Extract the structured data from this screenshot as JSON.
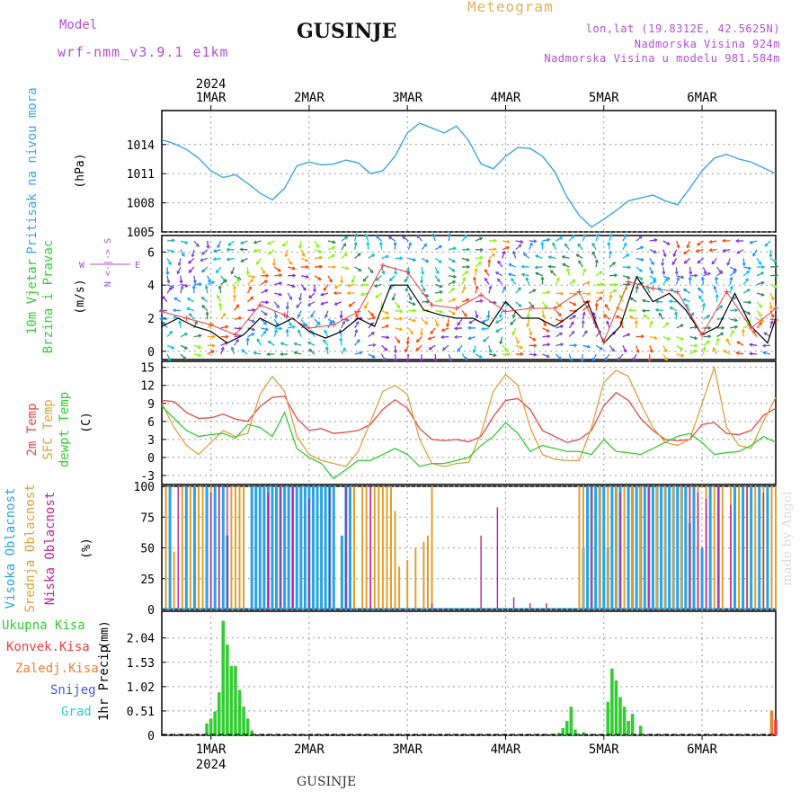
{
  "header": {
    "model_label": "Model",
    "model_name": "wrf-nmm_v3.9.1 e1km",
    "station": "GUSINJE",
    "product": "Meteogram",
    "lonlat": "lon,lat (19.8312E, 42.5625N)",
    "altitude": "Nadmorska Visina 924m",
    "altitude_model": "Nadmorska Visina u modelu 981.584m"
  },
  "footer": {
    "station": "GUSINJE",
    "watermark": "made by Angel"
  },
  "time_axis": {
    "year": "2024",
    "days": [
      "1MAR",
      "2MAR",
      "3MAR",
      "4MAR",
      "5MAR",
      "6MAR"
    ],
    "start_hour": -12,
    "end_hour": 138
  },
  "colors": {
    "pressure": "#3aa7e3",
    "temp2m": "#e04848",
    "sfc": "#e0a040",
    "dewpt": "#33cc33",
    "high_cloud": "#2aa2e6",
    "mid_cloud": "#e0a030",
    "low_cloud": "#c0209a",
    "rain_total": "#33cc33",
    "rain_conv": "#e84040",
    "rain_frozen": "#f08030",
    "snow": "#5050e0",
    "grad": "#30c8c0"
  },
  "chart_data": [
    {
      "type": "line",
      "panel": "pressure",
      "ylabel": "Pritisak na nivou mora",
      "unit": "(hPa)",
      "yticks": [
        1005,
        1008,
        1011,
        1014
      ],
      "ylim": [
        1005,
        1017.5
      ],
      "series": [
        {
          "x": [
            -12,
            -9,
            -6,
            -3,
            0,
            3,
            6,
            9,
            12,
            15,
            18,
            21,
            24,
            27,
            30,
            33,
            36,
            39,
            42,
            45,
            48,
            51,
            54,
            57,
            60,
            63,
            66,
            69,
            72,
            75,
            78,
            81,
            84,
            87,
            90,
            93,
            96,
            99,
            102,
            105,
            108,
            111,
            114,
            117,
            120,
            123,
            126,
            129,
            132,
            135,
            138
          ],
          "values": [
            1014.5,
            1014.1,
            1013.5,
            1012.6,
            1011.3,
            1010.6,
            1010.9,
            1010.0,
            1009.0,
            1008.3,
            1009.5,
            1011.8,
            1012.2,
            1011.9,
            1012.0,
            1012.4,
            1012.1,
            1011.0,
            1011.3,
            1012.8,
            1015.2,
            1016.2,
            1015.7,
            1015.2,
            1015.9,
            1014.4,
            1012.0,
            1011.5,
            1012.8,
            1013.7,
            1013.6,
            1012.8,
            1011.2,
            1008.6,
            1006.7,
            1005.5,
            1006.3,
            1007.2,
            1008.2,
            1008.5,
            1008.8,
            1008.2,
            1007.8,
            1009.5,
            1011.3,
            1012.6,
            1013.0,
            1012.5,
            1012.2,
            1011.6,
            1011.0
          ]
        }
      ]
    },
    {
      "type": "line",
      "panel": "wind",
      "ylabel": "10m Vjetar Brzina i Pravac",
      "unit": "(m/s)",
      "compass": [
        "N",
        "S",
        "W",
        "E"
      ],
      "yticks": [
        0,
        2,
        4,
        6
      ],
      "ylim": [
        -0.5,
        7
      ],
      "series": [
        {
          "name": "speed",
          "x": [
            -12,
            -8,
            -4,
            0,
            4,
            8,
            12,
            16,
            20,
            24,
            28,
            32,
            36,
            40,
            44,
            48,
            52,
            56,
            60,
            64,
            68,
            72,
            76,
            80,
            84,
            88,
            92,
            96,
            100,
            104,
            108,
            112,
            116,
            120,
            124,
            128,
            132,
            136,
            138
          ],
          "values": [
            1.5,
            2.0,
            1.5,
            1.2,
            0.5,
            1.0,
            2.0,
            1.5,
            2.0,
            1.2,
            0.8,
            1.2,
            2.0,
            1.5,
            4.0,
            4.0,
            2.5,
            2.2,
            2.0,
            2.0,
            1.5,
            3.0,
            2.0,
            2.0,
            1.5,
            2.2,
            3.0,
            0.5,
            1.5,
            4.5,
            3.0,
            3.5,
            2.5,
            1.0,
            1.5,
            3.5,
            1.5,
            0.5,
            2.0
          ]
        },
        {
          "name": "gust",
          "x": [
            -12,
            -6,
            0,
            6,
            12,
            18,
            24,
            30,
            36,
            42,
            48,
            54,
            60,
            66,
            72,
            78,
            84,
            90,
            96,
            102,
            108,
            114,
            120,
            126,
            132,
            138
          ],
          "values": [
            2.4,
            2.0,
            1.6,
            1.0,
            2.8,
            2.2,
            1.4,
            1.6,
            2.4,
            5.2,
            4.8,
            2.8,
            2.6,
            3.4,
            2.4,
            2.6,
            2.6,
            3.6,
            0.6,
            4.2,
            3.8,
            3.6,
            1.0,
            3.6,
            1.4,
            2.6
          ]
        }
      ]
    },
    {
      "type": "line",
      "panel": "temperature",
      "ylabel": "2m Temp",
      "ylabel2": "SFC Temp",
      "ylabel3": "dewpt Temp",
      "unit": "(C)",
      "yticks": [
        -3,
        0,
        3,
        6,
        9,
        12,
        15
      ],
      "ylim": [
        -4.5,
        16
      ],
      "series": [
        {
          "name": "2m Temp",
          "x": [
            -12,
            -9,
            -6,
            -3,
            0,
            3,
            6,
            9,
            12,
            15,
            18,
            21,
            24,
            27,
            30,
            33,
            36,
            39,
            42,
            45,
            48,
            51,
            54,
            57,
            60,
            63,
            66,
            69,
            72,
            75,
            78,
            81,
            84,
            87,
            90,
            93,
            96,
            99,
            102,
            105,
            108,
            111,
            114,
            117,
            120,
            123,
            126,
            129,
            132,
            135,
            138
          ],
          "values": [
            9.5,
            9.3,
            7.5,
            6.5,
            6.6,
            7.2,
            6.4,
            6.0,
            8.5,
            10.0,
            10.2,
            6.5,
            4.5,
            4.8,
            4.0,
            4.2,
            4.5,
            5.5,
            8.0,
            9.6,
            8.2,
            4.8,
            3.0,
            2.8,
            3.0,
            2.6,
            3.5,
            6.8,
            9.5,
            9.8,
            8.0,
            4.5,
            3.5,
            2.5,
            3.0,
            4.5,
            8.6,
            10.8,
            9.5,
            6.5,
            4.5,
            3.0,
            2.8,
            3.0,
            5.5,
            5.8,
            4.0,
            3.8,
            4.5,
            7.0,
            8.2
          ]
        },
        {
          "name": "SFC Temp",
          "x": [
            -12,
            -9,
            -6,
            -3,
            0,
            3,
            6,
            9,
            12,
            15,
            18,
            21,
            24,
            27,
            30,
            33,
            36,
            39,
            42,
            45,
            48,
            51,
            54,
            57,
            60,
            63,
            66,
            69,
            72,
            75,
            78,
            81,
            84,
            87,
            90,
            93,
            96,
            99,
            102,
            105,
            108,
            111,
            114,
            117,
            120,
            123,
            126,
            129,
            132,
            135,
            138
          ],
          "values": [
            9.0,
            5.0,
            2.0,
            0.5,
            2.5,
            4.5,
            3.5,
            4.0,
            10.5,
            13.5,
            11.0,
            3.5,
            0.5,
            -0.5,
            -1.0,
            -1.5,
            1.0,
            6.0,
            11.0,
            12.0,
            10.5,
            3.0,
            -1.0,
            -1.5,
            -1.0,
            -0.8,
            4.0,
            11.0,
            13.8,
            12.0,
            5.0,
            0.5,
            -0.3,
            -0.5,
            -0.5,
            5.0,
            12.5,
            14.5,
            13.5,
            9.0,
            5.0,
            2.5,
            2.0,
            3.0,
            9.0,
            15.0,
            5.0,
            2.0,
            1.5,
            6.0,
            10.0
          ]
        },
        {
          "name": "dewpt Temp",
          "x": [
            -12,
            -9,
            -6,
            -3,
            0,
            3,
            6,
            9,
            12,
            15,
            18,
            21,
            24,
            27,
            30,
            33,
            36,
            39,
            42,
            45,
            48,
            51,
            54,
            57,
            60,
            63,
            66,
            69,
            72,
            75,
            78,
            81,
            84,
            87,
            90,
            93,
            96,
            99,
            102,
            105,
            108,
            111,
            114,
            117,
            120,
            123,
            126,
            129,
            132,
            135,
            138
          ],
          "values": [
            8.5,
            6.5,
            4.5,
            3.5,
            3.8,
            4.0,
            3.2,
            5.5,
            5.0,
            3.5,
            7.5,
            1.5,
            0.0,
            -1.0,
            -3.5,
            -2.0,
            -0.5,
            -0.5,
            0.5,
            1.5,
            0.5,
            -1.5,
            -1.0,
            -1.0,
            -0.5,
            0.0,
            2.0,
            3.5,
            5.8,
            4.0,
            1.0,
            2.0,
            1.5,
            1.0,
            1.0,
            0.5,
            3.0,
            1.0,
            0.8,
            0.5,
            1.5,
            2.5,
            3.5,
            4.0,
            2.5,
            0.5,
            0.8,
            1.0,
            2.0,
            3.5,
            2.5
          ]
        }
      ]
    },
    {
      "type": "bar",
      "panel": "cloud",
      "ylabel": "Visoka Oblacnost",
      "ylabel2": "Srednja Oblacnost",
      "ylabel3": "Niska Oblacnost",
      "unit": "(%)",
      "yticks": [
        0,
        25,
        50,
        75,
        100
      ],
      "ylim": [
        0,
        100
      ],
      "series": [
        {
          "name": "Visoka Oblacnost",
          "x": [
            -10,
            -6,
            -4,
            -1,
            1,
            3,
            4,
            10,
            11,
            12,
            13,
            14,
            15,
            16,
            17,
            18,
            19,
            20,
            21,
            22,
            23,
            24,
            25,
            26,
            27,
            28,
            29,
            30,
            32,
            33,
            34,
            91,
            92,
            93,
            94,
            95,
            96,
            97,
            98,
            99,
            100,
            102,
            103,
            104,
            105,
            106,
            107,
            108,
            109,
            110,
            111,
            112,
            113,
            114,
            115,
            116,
            117,
            118,
            120,
            122,
            124,
            128,
            130,
            132,
            134,
            136
          ],
          "values": [
            100,
            100,
            100,
            100,
            100,
            100,
            60,
            100,
            100,
            100,
            100,
            100,
            100,
            100,
            100,
            100,
            100,
            100,
            100,
            100,
            100,
            100,
            100,
            100,
            100,
            100,
            100,
            100,
            60,
            100,
            100,
            50,
            100,
            100,
            100,
            100,
            100,
            50,
            100,
            100,
            100,
            100,
            100,
            100,
            100,
            100,
            100,
            100,
            100,
            100,
            100,
            100,
            100,
            100,
            100,
            100,
            70,
            100,
            50,
            100,
            100,
            100,
            100,
            100,
            100,
            100
          ]
        },
        {
          "name": "Srednja Oblacnost",
          "x": [
            -11,
            -9,
            -7,
            -5,
            -3,
            -2,
            0,
            2,
            5,
            6,
            7,
            8,
            35,
            37,
            38,
            39,
            40,
            41,
            42,
            43,
            44,
            45,
            46,
            48,
            50,
            52,
            53,
            54,
            90,
            91,
            93,
            95,
            97,
            99,
            101,
            103,
            105,
            107,
            109,
            111,
            113,
            115,
            117,
            119,
            121,
            123,
            125,
            127,
            129,
            131,
            133,
            135,
            137,
            138
          ],
          "values": [
            100,
            47,
            100,
            100,
            100,
            100,
            100,
            100,
            100,
            100,
            100,
            100,
            100,
            100,
            100,
            100,
            100,
            100,
            100,
            100,
            100,
            80,
            35,
            40,
            50,
            55,
            60,
            100,
            100,
            100,
            100,
            100,
            100,
            100,
            100,
            100,
            100,
            100,
            100,
            100,
            100,
            100,
            100,
            100,
            100,
            100,
            100,
            100,
            100,
            100,
            100,
            100,
            100,
            100
          ]
        },
        {
          "name": "Niska Oblacnost",
          "x": [
            -8,
            0,
            2,
            4,
            14,
            17,
            20,
            24,
            29,
            33,
            39,
            54,
            66,
            70,
            74,
            78,
            82,
            93,
            100,
            107,
            117,
            119,
            121,
            124,
            127,
            131,
            135
          ],
          "values": [
            100,
            95,
            100,
            100,
            95,
            100,
            100,
            90,
            100,
            100,
            100,
            5,
            60,
            83,
            10,
            5,
            5,
            100,
            95,
            100,
            100,
            95,
            90,
            100,
            85,
            100,
            95
          ]
        }
      ]
    },
    {
      "type": "bar",
      "panel": "precip",
      "ylabel": "1hr Precip",
      "unit": "(mm)",
      "legend": [
        "Ukupna Kisa",
        "Konvek.Kisa",
        "Zaledj.Kisa",
        "Snijeg",
        "Grad"
      ],
      "yticks": [
        0,
        0.51,
        1.02,
        1.53,
        2.04
      ],
      "ylim": [
        0,
        2.6
      ],
      "series": [
        {
          "name": "Ukupna Kisa",
          "x": [
            -1,
            0,
            1,
            2,
            3,
            4,
            5,
            6,
            7,
            8,
            9,
            10,
            85,
            86,
            87,
            88,
            89,
            91,
            97,
            98,
            99,
            100,
            101,
            102,
            103,
            105
          ],
          "values": [
            0.25,
            0.35,
            0.5,
            0.9,
            2.4,
            1.9,
            1.45,
            1.45,
            0.95,
            0.6,
            0.35,
            0.1,
            0.05,
            0.15,
            0.3,
            0.6,
            0.12,
            0.06,
            0.7,
            1.4,
            1.15,
            0.8,
            0.6,
            0.3,
            0.45,
            0.2
          ]
        },
        {
          "name": "Konvek.Kisa",
          "x": [
            138
          ],
          "values": [
            0.33
          ]
        },
        {
          "name": "Zaledj.Kisa",
          "x": [
            137
          ],
          "values": [
            0.52
          ]
        },
        {
          "name": "Snijeg",
          "x": [],
          "values": []
        },
        {
          "name": "Grad",
          "x": [],
          "values": []
        }
      ]
    }
  ]
}
